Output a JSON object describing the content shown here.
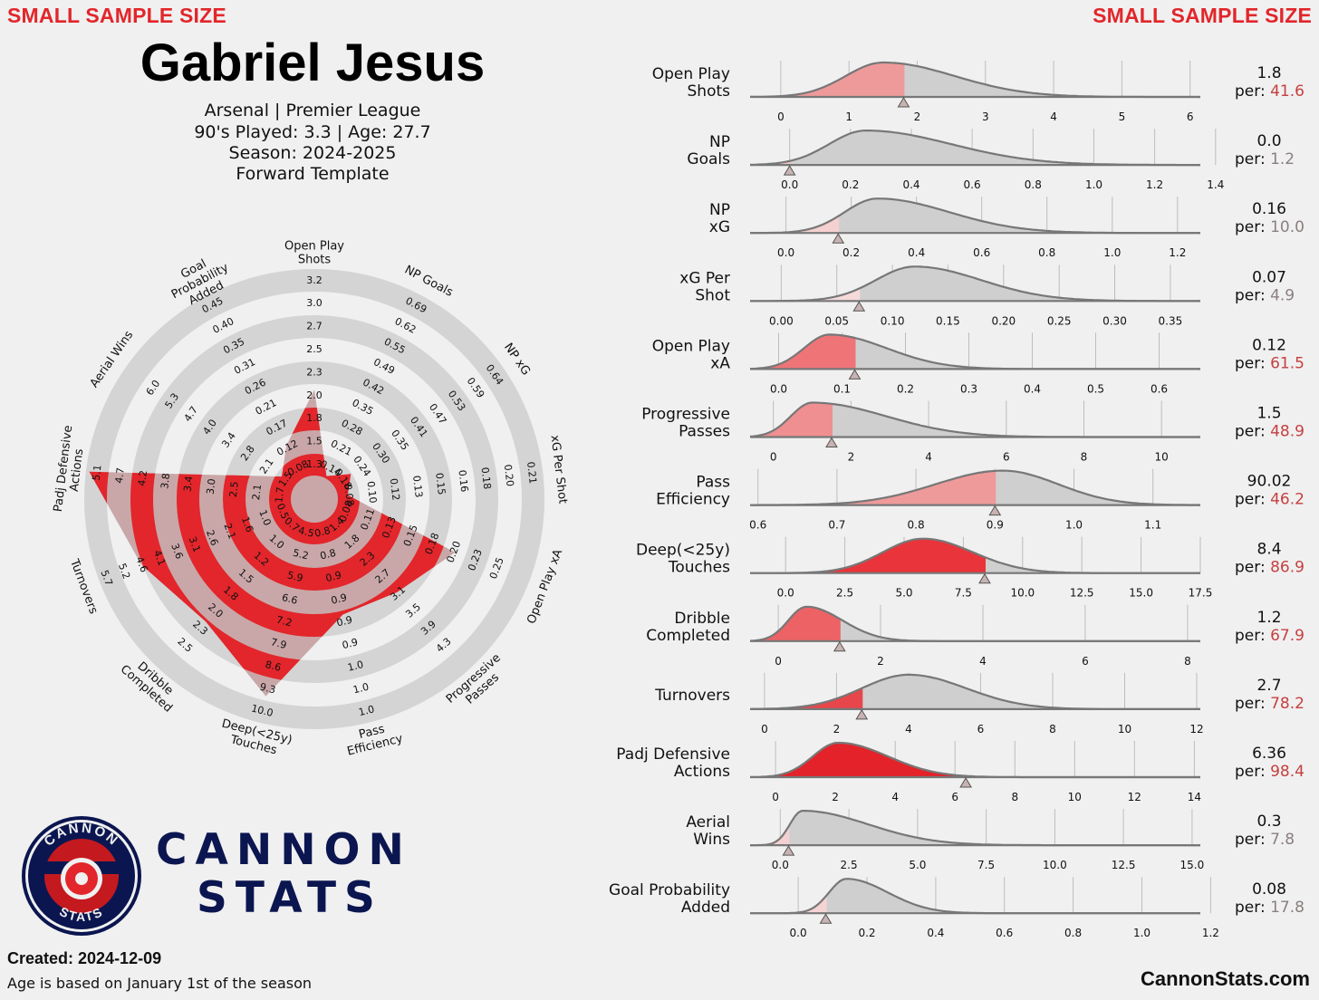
{
  "header": {
    "warning_left": "SMALL SAMPLE SIZE",
    "warning_right": "SMALL SAMPLE SIZE",
    "player_name": "Gabriel Jesus",
    "info_line1": "Arsenal | Premier League",
    "info_line2": "90's Played: 3.3 | Age: 27.7",
    "info_line3": "Season: 2024-2025",
    "info_line4": "Forward Template"
  },
  "footer": {
    "created": "Created: 2024-12-09",
    "age_note": "Age is based on January 1st of the season",
    "site": "CannonStats.com",
    "brand_line1": "CANNON",
    "brand_line2": "STATS",
    "logo_top": "CANNON",
    "logo_bottom": "STATS"
  },
  "colors": {
    "accent_red": "#e2262b",
    "navy": "#0b1650",
    "ring_grey": "#d4d4d4",
    "dist_grey": "#cccccc",
    "background": "#f0f0f0"
  },
  "chart_data": [
    {
      "type": "radar",
      "title": "",
      "categories": [
        "Open Play Shots",
        "NP Goals",
        "NP xG",
        "xG Per Shot",
        "Open Play xA",
        "Progressive Passes",
        "Pass Efficiency",
        "Deep(<25y) Touches",
        "Dribble Completed",
        "Turnovers",
        "Padj Defensive Actions",
        "Aerial Wins",
        "Goal Probability Added"
      ],
      "percentiles": [
        41.6,
        1.2,
        10.0,
        4.9,
        61.5,
        48.9,
        46.2,
        86.9,
        67.9,
        78.2,
        98.4,
        7.8,
        17.8
      ],
      "values": [
        1.8,
        0.0,
        0.16,
        0.07,
        0.12,
        1.5,
        90.02,
        8.4,
        1.2,
        2.7,
        6.36,
        0.3,
        0.08
      ],
      "tick_labels": [
        [
          "1.3",
          "1.5",
          "1.8",
          "2.0",
          "2.3",
          "2.5",
          "2.7",
          "3.0",
          "3.2"
        ],
        [
          "0.14",
          "0.21",
          "0.28",
          "0.35",
          "0.42",
          "0.49",
          "0.55",
          "0.62",
          "0.69"
        ],
        [
          "0.18",
          "0.24",
          "0.30",
          "0.35",
          "0.41",
          "0.47",
          "0.53",
          "0.59",
          "0.64"
        ],
        [
          "0.08",
          "0.10",
          "0.12",
          "0.13",
          "0.15",
          "0.16",
          "0.18",
          "0.20",
          "0.21"
        ],
        [
          "0.08",
          "0.11",
          "0.13",
          "0.15",
          "0.18",
          "0.20",
          "0.23",
          "0.25"
        ],
        [
          "1.4",
          "1.8",
          "2.3",
          "2.7",
          "3.1",
          "3.5",
          "3.9",
          "4.3"
        ],
        [
          "0.8",
          "0.8",
          "0.9",
          "0.9",
          "0.9",
          "0.9",
          "1.0",
          "1.0",
          "1.0"
        ],
        [
          "4.5",
          "5.2",
          "5.9",
          "6.6",
          "7.2",
          "7.9",
          "8.6",
          "9.3",
          "10.0"
        ],
        [
          "0.7",
          "1.0",
          "1.2",
          "1.5",
          "1.8",
          "2.0",
          "2.3",
          "2.5"
        ],
        [
          "0.5",
          "1.0",
          "1.6",
          "2.1",
          "2.6",
          "3.1",
          "3.6",
          "4.1",
          "4.6",
          "5.2",
          "5.7"
        ],
        [
          "1.7",
          "2.1",
          "2.5",
          "3.0",
          "3.4",
          "3.8",
          "4.2",
          "4.7",
          "5.1"
        ],
        [
          "1.5",
          "2.1",
          "2.8",
          "3.4",
          "4.0",
          "4.7",
          "5.3",
          "6.0"
        ],
        [
          "0.08",
          "0.12",
          "0.17",
          "0.21",
          "0.26",
          "0.31",
          "0.35",
          "0.40",
          "0.45"
        ]
      ],
      "axis_titles": [
        "Open Play Shots",
        "NP Goals",
        "NP xG",
        "xG Per Shot",
        "Open Play xA",
        "Progressive Passes",
        "Pass Efficiency",
        "Deep(<25y) Touches",
        "Dribble Completed",
        "Turnovers",
        "Padj Defensive Actions",
        "Aerial Wins",
        "Goal Probability Added"
      ]
    },
    {
      "type": "area",
      "subtype": "density",
      "panels": [
        {
          "label": [
            "Open Play",
            "Shots"
          ],
          "value_text": "1.8",
          "per_text": "41.6",
          "player_value": 1.8,
          "xlim": [
            -0.45,
            6.15
          ],
          "ticks": [
            0,
            1,
            2,
            3,
            4,
            5,
            6
          ],
          "tick_labels": [
            "0",
            "1",
            "2",
            "3",
            "4",
            "5",
            "6"
          ],
          "fill_color": "#ef9a9a",
          "per_color": "#c64040",
          "peak": 1.5,
          "sd_left": 0.55,
          "sd_right": 1.05
        },
        {
          "label": [
            "NP",
            "Goals"
          ],
          "value_text": "0.0",
          "per_text": "1.2",
          "player_value": 0.0,
          "xlim": [
            -0.13,
            1.35
          ],
          "ticks": [
            0,
            0.2,
            0.4,
            0.6,
            0.8,
            1.0,
            1.2,
            1.4
          ],
          "tick_labels": [
            "0.0",
            "0.2",
            "0.4",
            "0.6",
            "0.8",
            "1.0",
            "1.2",
            "1.4"
          ],
          "fill_color": "#f2c4c4",
          "per_color": "#8a7f7f",
          "peak": 0.25,
          "sd_left": 0.12,
          "sd_right": 0.28
        },
        {
          "label": [
            "NP",
            "xG"
          ],
          "value_text": "0.16",
          "per_text": "10.0",
          "player_value": 0.16,
          "xlim": [
            -0.11,
            1.27
          ],
          "ticks": [
            0,
            0.2,
            0.4,
            0.6,
            0.8,
            1.0,
            1.2
          ],
          "tick_labels": [
            "0.0",
            "0.2",
            "0.4",
            "0.6",
            "0.8",
            "1.0",
            "1.2"
          ],
          "fill_color": "#f4d0d0",
          "per_color": "#8a7f7f",
          "peak": 0.28,
          "sd_left": 0.1,
          "sd_right": 0.22
        },
        {
          "label": [
            "xG Per",
            "Shot"
          ],
          "value_text": "0.07",
          "per_text": "4.9",
          "player_value": 0.07,
          "xlim": [
            -0.028,
            0.377
          ],
          "ticks": [
            0,
            0.05,
            0.1,
            0.15,
            0.2,
            0.25,
            0.3,
            0.35
          ],
          "tick_labels": [
            "0.00",
            "0.05",
            "0.10",
            "0.15",
            "0.20",
            "0.25",
            "0.30",
            "0.35"
          ],
          "fill_color": "#f6dada",
          "per_color": "#8a7f7f",
          "peak": 0.12,
          "sd_left": 0.035,
          "sd_right": 0.06
        },
        {
          "label": [
            "Open Play",
            "xA"
          ],
          "value_text": "0.12",
          "per_text": "61.5",
          "player_value": 0.12,
          "xlim": [
            -0.045,
            0.665
          ],
          "ticks": [
            0,
            0.1,
            0.2,
            0.3,
            0.4,
            0.5,
            0.6
          ],
          "tick_labels": [
            "0.0",
            "0.1",
            "0.2",
            "0.3",
            "0.4",
            "0.5",
            "0.6"
          ],
          "fill_color": "#ee7478",
          "per_color": "#c64040",
          "peak": 0.08,
          "sd_left": 0.04,
          "sd_right": 0.09
        },
        {
          "label": [
            "Progressive",
            "Passes"
          ],
          "value_text": "1.5",
          "per_text": "48.9",
          "player_value": 1.5,
          "xlim": [
            -0.6,
            11.0
          ],
          "ticks": [
            0,
            2,
            4,
            6,
            8,
            10
          ],
          "tick_labels": [
            "0",
            "2",
            "4",
            "6",
            "8",
            "10"
          ],
          "fill_color": "#ef8f91",
          "per_color": "#c64040",
          "peak": 1.0,
          "sd_left": 0.55,
          "sd_right": 1.9
        },
        {
          "label": [
            "Pass",
            "Efficiency"
          ],
          "value_text": "90.02",
          "per_text": "46.2",
          "player_value": 0.9,
          "xlim": [
            0.59,
            1.16
          ],
          "ticks": [
            0.6,
            0.7,
            0.8,
            0.9,
            1.0,
            1.1
          ],
          "tick_labels": [
            "0.6",
            "0.7",
            "0.8",
            "0.9",
            "1.0",
            "1.1"
          ],
          "fill_color": "#ef9a9a",
          "per_color": "#c64040",
          "peak": 0.91,
          "sd_left": 0.085,
          "sd_right": 0.07
        },
        {
          "label": [
            "Deep(<25y)",
            "Touches"
          ],
          "value_text": "8.4",
          "per_text": "86.9",
          "player_value": 8.4,
          "xlim": [
            -1.5,
            17.5
          ],
          "ticks": [
            0,
            2.5,
            5,
            7.5,
            10,
            12.5,
            15,
            17.5
          ],
          "tick_labels": [
            "0.0",
            "2.5",
            "5.0",
            "7.5",
            "10.0",
            "12.5",
            "15.0",
            "17.5"
          ],
          "fill_color": "#e8343a",
          "per_color": "#c64040",
          "peak": 5.8,
          "sd_left": 1.7,
          "sd_right": 2.1
        },
        {
          "label": [
            "Dribble",
            "Completed"
          ],
          "value_text": "1.2",
          "per_text": "67.9",
          "player_value": 1.2,
          "xlim": [
            -0.55,
            8.25
          ],
          "ticks": [
            0,
            2,
            4,
            6,
            8
          ],
          "tick_labels": [
            "0",
            "2",
            "4",
            "6",
            "8"
          ],
          "fill_color": "#ec6265",
          "per_color": "#c64040",
          "peak": 0.55,
          "sd_left": 0.35,
          "sd_right": 0.7
        },
        {
          "label": [
            "Turnovers"
          ],
          "value_text": "2.7",
          "per_text": "78.2",
          "player_value": 2.7,
          "xlim": [
            -0.4,
            12.1
          ],
          "ticks": [
            0,
            2,
            4,
            6,
            8,
            10,
            12
          ],
          "tick_labels": [
            "0",
            "2",
            "4",
            "6",
            "8",
            "10",
            "12"
          ],
          "fill_color": "#e7464b",
          "per_color": "#c64040",
          "peak": 4.0,
          "sd_left": 1.3,
          "sd_right": 1.6
        },
        {
          "label": [
            "Padj Defensive",
            "Actions"
          ],
          "value_text": "6.36",
          "per_text": "98.4",
          "player_value": 6.36,
          "xlim": [
            -0.85,
            14.2
          ],
          "ticks": [
            0,
            2,
            4,
            6,
            8,
            10,
            12,
            14
          ],
          "tick_labels": [
            "0",
            "2",
            "4",
            "6",
            "8",
            "10",
            "12",
            "14"
          ],
          "fill_color": "#e32229",
          "per_color": "#c64040",
          "peak": 2.1,
          "sd_left": 0.85,
          "sd_right": 1.65
        },
        {
          "label": [
            "Aerial",
            "Wins"
          ],
          "value_text": "0.3",
          "per_text": "7.8",
          "player_value": 0.3,
          "xlim": [
            -1.1,
            15.3
          ],
          "ticks": [
            0,
            2.5,
            5,
            7.5,
            10,
            12.5,
            15
          ],
          "tick_labels": [
            "0.0",
            "2.5",
            "5.0",
            "7.5",
            "10.0",
            "12.5",
            "15.0"
          ],
          "fill_color": "#f4d0d0",
          "per_color": "#8a7f7f",
          "peak": 0.8,
          "sd_left": 0.45,
          "sd_right": 2.4
        },
        {
          "label": [
            "Goal Probability",
            "Added"
          ],
          "value_text": "0.08",
          "per_text": "17.8",
          "player_value": 0.08,
          "xlim": [
            -0.14,
            1.17
          ],
          "ticks": [
            0,
            0.2,
            0.4,
            0.6,
            0.8,
            1.0,
            1.2
          ],
          "tick_labels": [
            "0.0",
            "0.2",
            "0.4",
            "0.6",
            "0.8",
            "1.0",
            "1.2"
          ],
          "fill_color": "#f6d3d3",
          "per_color": "#8a7f7f",
          "peak": 0.14,
          "sd_left": 0.05,
          "sd_right": 0.12
        }
      ]
    }
  ]
}
